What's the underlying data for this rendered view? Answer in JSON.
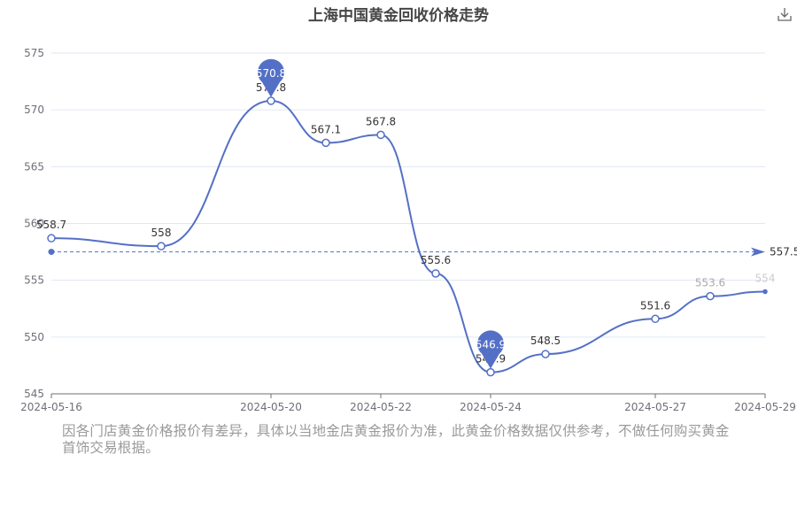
{
  "title": "上海中国黄金回收价格走势",
  "disclaimer": "因各门店黄金价格报价有差异，具体以当地金店黄金报价为准，此黄金价格数据仅供参考，不做任何购买黄金首饰交易根据。",
  "toolbox": {
    "download_icon": "download-icon"
  },
  "colors": {
    "line": "#5470c6",
    "grid": "#e0e6f1",
    "axis": "#6e7079",
    "avg": "#5470c6"
  },
  "chart_data": {
    "type": "line",
    "x": [
      "2024-05-16",
      "2024-05-18",
      "2024-05-20",
      "2024-05-21",
      "2024-05-22",
      "2024-05-23",
      "2024-05-24",
      "2024-05-25",
      "2024-05-27",
      "2024-05-28",
      "2024-05-29"
    ],
    "values": [
      558.7,
      558,
      570.8,
      567.1,
      567.8,
      555.6,
      546.9,
      548.5,
      551.6,
      553.6,
      554
    ],
    "x_tick_labels": [
      "2024-05-16",
      "2024-05-20",
      "2024-05-22",
      "2024-05-24",
      "2024-05-27",
      "2024-05-29"
    ],
    "y_ticks": [
      545,
      550,
      555,
      560,
      565,
      570,
      575
    ],
    "ylim": [
      545,
      575
    ],
    "smooth": true,
    "grid": true,
    "mark_points": [
      {
        "type": "max",
        "label": "570.8",
        "index": 2
      },
      {
        "type": "min",
        "label": "546.9",
        "index": 6
      }
    ],
    "mark_line": {
      "type": "average",
      "value": 557.5,
      "label": "557.5"
    },
    "title": "上海中国黄金回收价格走势",
    "xlabel": "",
    "ylabel": ""
  }
}
